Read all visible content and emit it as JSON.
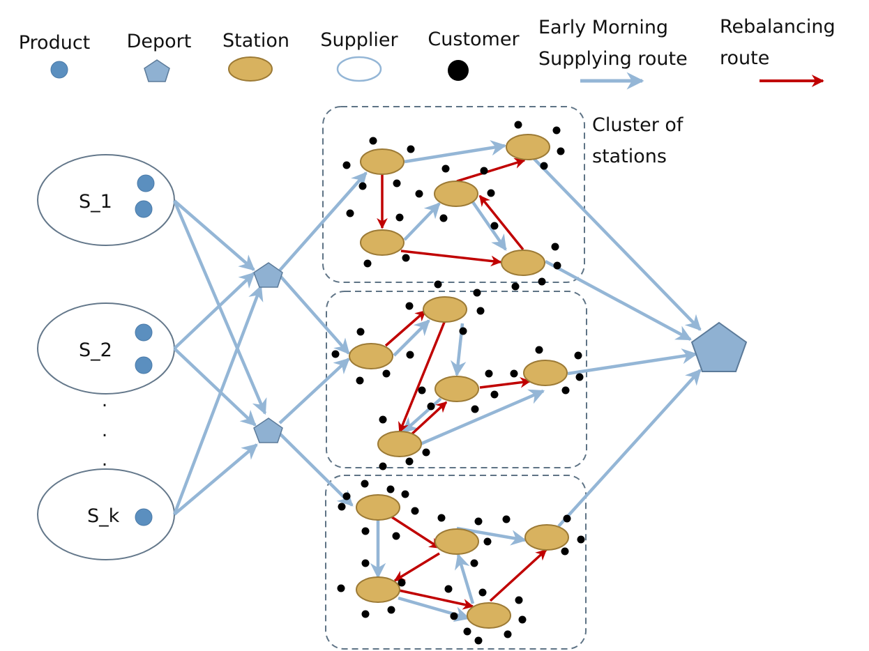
{
  "legend": {
    "product": "Product",
    "deport": "Deport",
    "station": "Station",
    "supplier": "Supplier",
    "customer": "Customer",
    "supply_route_line1": "Early Morning",
    "supply_route_line2": "Supplying route",
    "rebalance_route_line1": "Rebalancing",
    "rebalance_route_line2": "route"
  },
  "cluster_label_line1": "Cluster of",
  "cluster_label_line2": "stations",
  "suppliers": [
    {
      "label": "S_1",
      "products": 2
    },
    {
      "label": "S_2",
      "products": 2
    },
    {
      "label": "S_k",
      "products": 1
    }
  ],
  "ellipsis": ".",
  "colors": {
    "supply_route": "#94b6d6",
    "rebalance_route": "#c00000",
    "station_fill": "#d8b25f",
    "station_stroke": "#9c7a35",
    "deport_fill": "#8fb1d2",
    "deport_stroke": "#5b7a99",
    "product": "#5b8fbf",
    "supplier_stroke": "#63778a",
    "cluster_border": "#5e7385",
    "customer": "#000000"
  }
}
